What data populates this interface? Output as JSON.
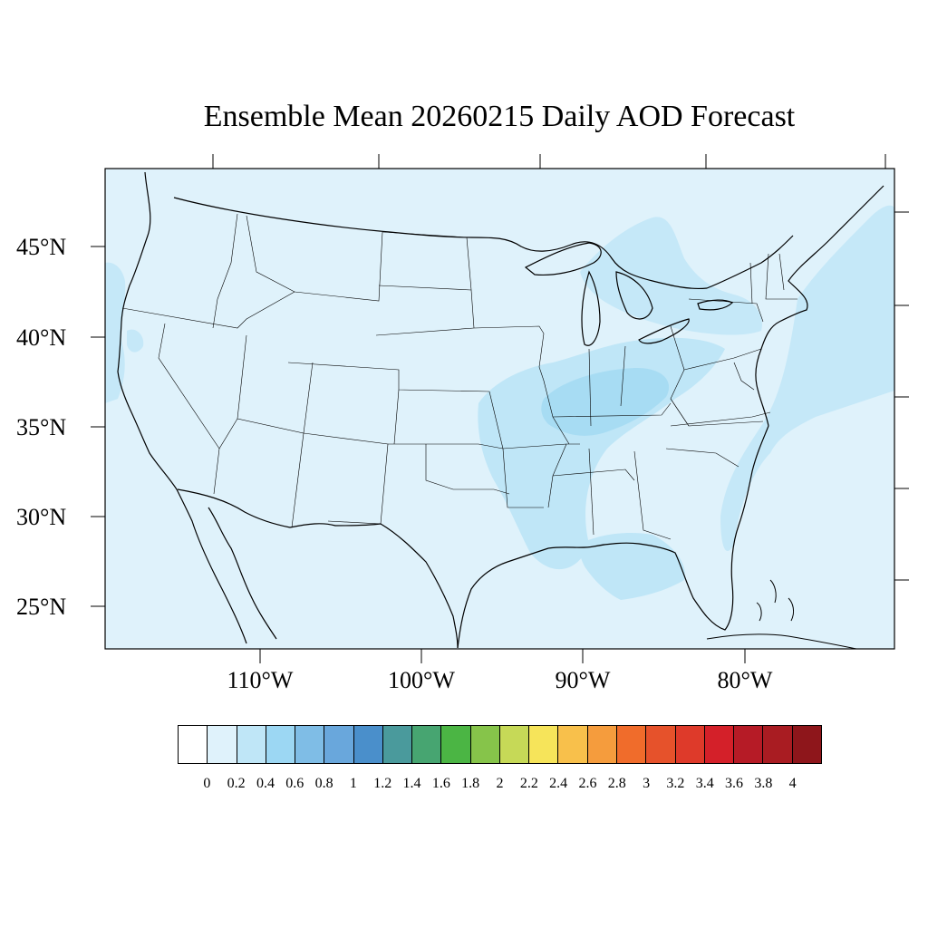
{
  "title": "Ensemble Mean 20260215 Daily AOD Forecast",
  "map": {
    "projection": "lambert-conformal",
    "region": "Continental United States",
    "variable": "AOD",
    "background_color": "#dff2fb",
    "lat_labels": [
      "45°N",
      "40°N",
      "35°N",
      "30°N",
      "25°N"
    ],
    "lon_labels": [
      "110°W",
      "100°W",
      "90°W",
      "80°W"
    ],
    "plume_fields": [
      {
        "region": "Ohio and Tennessee valleys / Mississippi basin",
        "color": "#bfe6f7",
        "range": "0.2–0.4"
      },
      {
        "region": "Central Kentucky / Tennessee core",
        "color": "#a7dcf3",
        "range": "0.4–0.6"
      },
      {
        "region": "Great Lakes and Northeast",
        "color": "#c5e8f8",
        "range": "0.2–0.4"
      },
      {
        "region": "Gulf of Mexico off Louisiana–Florida",
        "color": "#bfe6f7",
        "range": "0.2–0.4"
      },
      {
        "region": "Western Atlantic off Northeast coast",
        "color": "#c5e8f8",
        "range": "0.2–0.4"
      }
    ]
  },
  "colorbar": {
    "colors": [
      "#ffffff",
      "#dff2fb",
      "#bfe6f7",
      "#9cd7f3",
      "#7fbde6",
      "#69a7dc",
      "#4a8fcb",
      "#4a9a9c",
      "#47a571",
      "#4bb544",
      "#86c44a",
      "#c6d957",
      "#f6e45a",
      "#f8c04b",
      "#f59c3d",
      "#f06c2b",
      "#e6522b",
      "#de3a2a",
      "#d42029",
      "#b61b26",
      "#a91c22",
      "#8e161b"
    ],
    "labels": [
      "0",
      "0.2",
      "0.4",
      "0.6",
      "0.8",
      "1",
      "1.2",
      "1.4",
      "1.6",
      "1.8",
      "2",
      "2.2",
      "2.4",
      "2.6",
      "2.8",
      "3",
      "3.2",
      "3.4",
      "3.6",
      "3.8",
      "4"
    ]
  }
}
